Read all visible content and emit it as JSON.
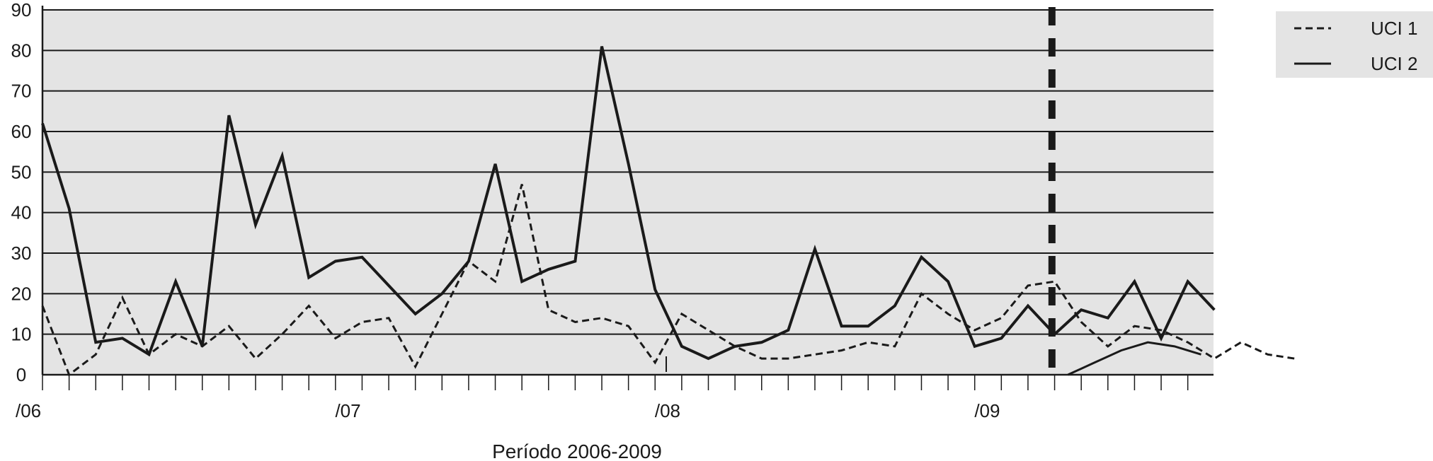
{
  "chart_data": {
    "type": "line",
    "title": "",
    "xlabel": "Período 2006-2009",
    "ylabel": "",
    "ylim": [
      0,
      90
    ],
    "yticks": [
      0,
      10,
      20,
      30,
      40,
      50,
      60,
      70,
      80,
      90
    ],
    "x_tick_labels": [
      "/06",
      "/07",
      "/08",
      "/09"
    ],
    "x_tick_label_index": [
      0,
      12,
      24,
      36
    ],
    "grid": true,
    "legend_position": "top-right",
    "marker_index": 37.9,
    "series": [
      {
        "name": "UCI 1",
        "style": "dashed",
        "values": [
          17,
          0,
          5,
          19,
          5,
          10,
          7,
          12,
          4,
          10,
          17,
          9,
          13,
          14,
          2,
          15,
          28,
          23,
          47,
          16,
          13,
          14,
          12,
          3,
          15,
          11,
          7,
          4,
          4,
          5,
          6,
          8,
          7,
          20,
          15,
          11,
          14,
          22,
          23,
          13,
          7,
          12,
          11,
          8,
          4,
          8,
          5,
          4
        ]
      },
      {
        "name": "UCI 2",
        "style": "solid",
        "values": [
          62,
          41,
          8,
          9,
          5,
          23,
          7,
          64,
          37,
          54,
          24,
          28,
          29,
          22,
          15,
          20,
          28,
          52,
          23,
          26,
          28,
          81,
          52,
          21,
          7,
          4,
          7,
          8,
          11,
          31,
          12,
          12,
          17,
          29,
          23,
          7,
          9,
          17,
          10,
          16,
          14,
          23,
          9,
          23,
          16
        ]
      },
      {
        "name": "",
        "style": "solid",
        "values": [
          0,
          3,
          6,
          8,
          7,
          5
        ]
      }
    ]
  }
}
